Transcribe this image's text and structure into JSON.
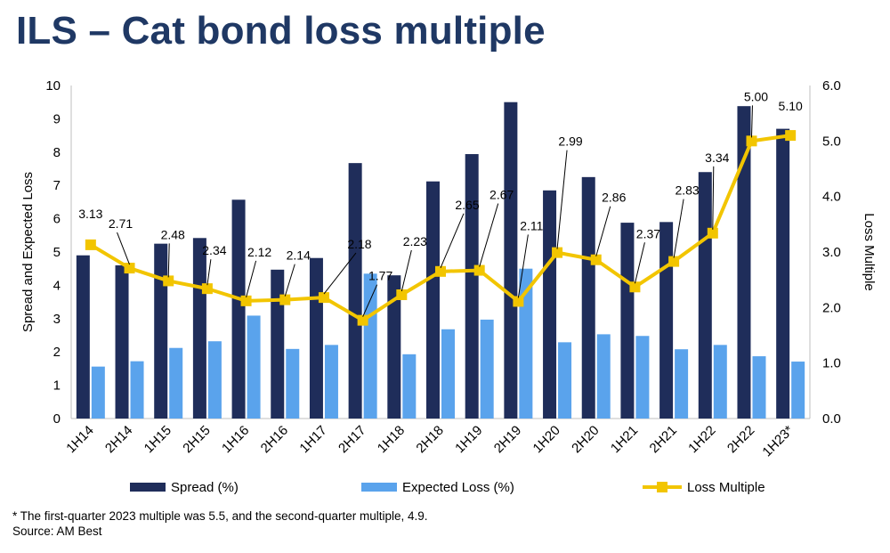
{
  "title": "ILS – Cat bond loss multiple",
  "footnote": "* The first-quarter 2023 multiple was 5.5, and the second-quarter multiple, 4.9.",
  "source": "Source: AM Best",
  "colors": {
    "title": "#1f3864",
    "spread": "#1f2d5a",
    "expected_loss": "#5aa3ec",
    "loss_multiple": "#f2c500"
  },
  "chart_data": {
    "type": "bar",
    "categories": [
      "1H14",
      "2H14",
      "1H15",
      "2H15",
      "1H16",
      "2H16",
      "1H17",
      "2H17",
      "1H18",
      "2H18",
      "1H19",
      "2H19",
      "1H20",
      "2H20",
      "1H21",
      "2H21",
      "1H22",
      "2H22",
      "1H23*"
    ],
    "series": [
      {
        "name": "Spread (%)",
        "type": "bar",
        "axis": "left",
        "values": [
          4.9,
          4.6,
          5.25,
          5.42,
          6.57,
          4.47,
          4.82,
          7.67,
          4.3,
          7.12,
          7.94,
          9.5,
          6.85,
          7.25,
          5.88,
          5.9,
          7.4,
          9.38,
          8.7
        ]
      },
      {
        "name": "Expected Loss (%)",
        "type": "bar",
        "axis": "left",
        "values": [
          1.56,
          1.72,
          2.12,
          2.32,
          3.09,
          2.09,
          2.21,
          4.35,
          1.93,
          2.68,
          2.97,
          4.5,
          2.29,
          2.53,
          2.48,
          2.08,
          2.21,
          1.87,
          1.71
        ]
      },
      {
        "name": "Loss Multiple",
        "type": "line",
        "axis": "right",
        "values": [
          3.13,
          2.71,
          2.48,
          2.34,
          2.12,
          2.14,
          2.18,
          1.77,
          2.23,
          2.65,
          2.67,
          2.11,
          2.99,
          2.86,
          2.37,
          2.83,
          3.34,
          5.0,
          5.1
        ]
      }
    ],
    "multiple_labels": [
      "3.13",
      "2.71",
      "2.48",
      "2.34",
      "2.12",
      "2.14",
      "2.18",
      "1.77",
      "2.23",
      "2.65",
      "2.67",
      "2.11",
      "2.99",
      "2.86",
      "2.37",
      "2.83",
      "3.34",
      "5.00",
      "5.10"
    ],
    "y_left": {
      "label": "Spread and Expected Loss",
      "min": 0,
      "max": 10,
      "ticks": [
        "0",
        "1",
        "2",
        "3",
        "4",
        "5",
        "6",
        "7",
        "8",
        "9",
        "10"
      ]
    },
    "y_right": {
      "label": "Loss Multiple",
      "min": 0,
      "max": 6,
      "ticks": [
        "0.0",
        "1.0",
        "2.0",
        "3.0",
        "4.0",
        "5.0",
        "6.0"
      ]
    },
    "grid": false,
    "legend": {
      "position": "bottom",
      "entries": [
        "Spread (%)",
        "Expected Loss (%)",
        "Loss Multiple"
      ]
    }
  }
}
